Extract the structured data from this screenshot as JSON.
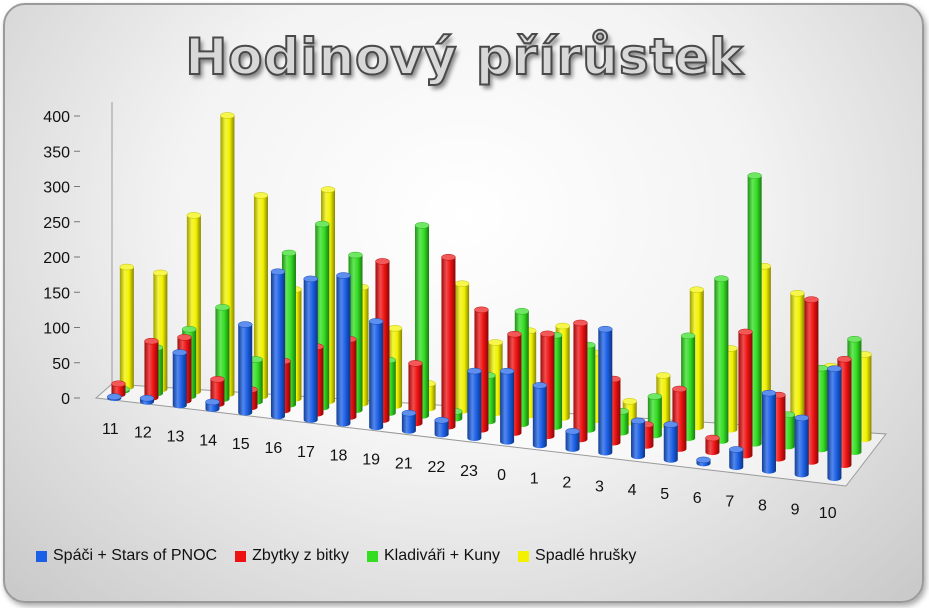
{
  "chart_data": {
    "type": "bar",
    "title": "Hodinový přírůstek",
    "categories": [
      "11",
      "12",
      "13",
      "14",
      "15",
      "16",
      "17",
      "18",
      "19",
      "21",
      "22",
      "23",
      "0",
      "1",
      "2",
      "3",
      "4",
      "5",
      "6",
      "7",
      "8",
      "9",
      "10"
    ],
    "ylim": [
      0,
      400
    ],
    "yticks": [
      "0",
      "50",
      "100",
      "150",
      "200",
      "250",
      "300",
      "350",
      "400"
    ],
    "grid": false,
    "legend_position": "bottom",
    "series": [
      {
        "name": "Spáči + Stars of PNOC",
        "color": "#1a5fe6",
        "values": [
          2,
          5,
          75,
          10,
          125,
          205,
          200,
          210,
          150,
          25,
          20,
          95,
          100,
          85,
          25,
          175,
          50,
          50,
          5,
          25,
          110,
          80,
          155
        ]
      },
      {
        "name": "Zbytky z bitky",
        "color": "#ee1111",
        "values": [
          15,
          80,
          90,
          35,
          25,
          70,
          95,
          110,
          225,
          85,
          240,
          170,
          140,
          145,
          165,
          90,
          30,
          85,
          20,
          175,
          90,
          230,
          150
        ]
      },
      {
        "name": "Kladiváři + Kuny",
        "color": "#33dd22",
        "values": [
          2,
          65,
          95,
          130,
          60,
          215,
          260,
          220,
          75,
          270,
          10,
          65,
          160,
          130,
          120,
          30,
          55,
          145,
          230,
          380,
          45,
          115,
          160
        ]
      },
      {
        "name": "Spadlé hrušky",
        "color": "#f2f200",
        "values": [
          170,
          165,
          250,
          395,
          285,
          155,
          300,
          165,
          110,
          35,
          180,
          100,
          120,
          130,
          95,
          30,
          70,
          195,
          115,
          235,
          200,
          100,
          120
        ]
      }
    ]
  },
  "legend": [
    {
      "label": "Spáči + Stars of PNOC",
      "color": "#1a5fe6"
    },
    {
      "label": "Zbytky z bitky",
      "color": "#ee1111"
    },
    {
      "label": "Kladiváři + Kuny",
      "color": "#33dd22"
    },
    {
      "label": "Spadlé hrušky",
      "color": "#f2f200"
    }
  ]
}
